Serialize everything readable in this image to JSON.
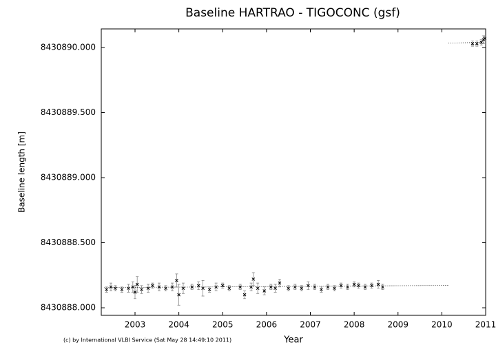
{
  "chart_data": {
    "type": "scatter",
    "title": "Baseline HARTRAO - TIGOCONC (gsf)",
    "xlabel": "Year",
    "ylabel": "Baseline length [m]",
    "credit": "(c) by International VLBI Service (Sat May 28 14:49:10 2011)",
    "xlim": [
      2002.23,
      2011
    ],
    "xticks": [
      2003,
      2004,
      2005,
      2006,
      2007,
      2008,
      2009,
      2010,
      2011
    ],
    "ylim": [
      8430887.942,
      8430890.143
    ],
    "yticks": [
      {
        "value": 8430888,
        "label": "8430888.000"
      },
      {
        "value": 8430888.5,
        "label": "8430888.500"
      },
      {
        "value": 8430889,
        "label": "8430889.000"
      },
      {
        "value": 8430889.5,
        "label": "8430889.500"
      },
      {
        "value": 8430890,
        "label": "8430890.000"
      }
    ],
    "series": [
      {
        "color": "#000000",
        "x": [
          2002.35,
          2002.45,
          2002.55,
          2002.7,
          2002.85,
          2002.95,
          2003.0,
          2003.05,
          2003.15,
          2003.3,
          2003.4,
          2003.55,
          2003.7,
          2003.85,
          2003.95,
          2004.0,
          2004.1,
          2004.3,
          2004.45,
          2004.55,
          2004.7,
          2004.85,
          2005.0,
          2005.15,
          2005.4,
          2005.5,
          2005.65,
          2005.7,
          2005.8,
          2005.95,
          2006.1,
          2006.2,
          2006.3,
          2006.5,
          2006.65,
          2006.8,
          2006.95,
          2007.1,
          2007.25,
          2007.4,
          2007.55,
          2007.7,
          2007.85,
          2008.0,
          2008.1,
          2008.25,
          2008.4,
          2008.55,
          2008.65,
          2010.7,
          2010.8,
          2010.9,
          2010.95,
          2010.98
        ],
        "values": [
          8430888.14,
          8430888.16,
          8430888.15,
          8430888.14,
          8430888.15,
          8430888.16,
          8430888.12,
          8430888.18,
          8430888.14,
          8430888.15,
          8430888.17,
          8430888.16,
          8430888.15,
          8430888.16,
          8430888.21,
          8430888.1,
          8430888.15,
          8430888.16,
          8430888.17,
          8430888.15,
          8430888.14,
          8430888.16,
          8430888.17,
          8430888.15,
          8430888.16,
          8430888.1,
          8430888.16,
          8430888.22,
          8430888.15,
          8430888.13,
          8430888.16,
          8430888.15,
          8430888.19,
          8430888.15,
          8430888.16,
          8430888.15,
          8430888.17,
          8430888.16,
          8430888.14,
          8430888.16,
          8430888.15,
          8430888.17,
          8430888.16,
          8430888.18,
          8430888.17,
          8430888.16,
          8430888.17,
          8430888.18,
          8430888.16,
          8430890.03,
          8430890.03,
          8430890.04,
          8430890.06,
          8430890.07
        ],
        "errors": [
          0.02,
          0.03,
          0.02,
          0.02,
          0.03,
          0.04,
          0.05,
          0.06,
          0.03,
          0.03,
          0.02,
          0.03,
          0.02,
          0.03,
          0.05,
          0.08,
          0.04,
          0.02,
          0.03,
          0.06,
          0.02,
          0.03,
          0.02,
          0.02,
          0.02,
          0.03,
          0.03,
          0.05,
          0.04,
          0.03,
          0.02,
          0.03,
          0.03,
          0.02,
          0.02,
          0.02,
          0.03,
          0.02,
          0.02,
          0.02,
          0.02,
          0.02,
          0.02,
          0.02,
          0.02,
          0.02,
          0.02,
          0.03,
          0.02,
          0.02,
          0.02,
          0.02,
          0.03,
          0.02
        ]
      }
    ],
    "fit_lines": [
      {
        "x": [
          2002.3,
          2010.15
        ],
        "values": [
          8430888.155,
          8430888.172
        ]
      },
      {
        "x": [
          2010.15,
          2011
        ],
        "values": [
          8430890.034,
          8430890.04
        ]
      }
    ]
  }
}
